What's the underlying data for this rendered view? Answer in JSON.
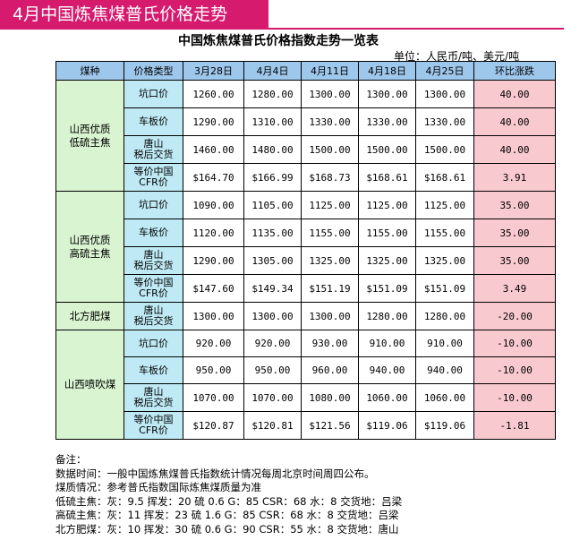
{
  "banner": {
    "title": "4月中国炼焦煤普氏价格走势"
  },
  "doc": {
    "title": "中国炼焦煤普氏价格指数走势一览表",
    "unit": "单位：人民币/吨、美元/吨"
  },
  "table": {
    "headers": [
      "煤种",
      "价格类型",
      "3月28日",
      "4月4日",
      "4月11日",
      "4月18日",
      "4月25日",
      "环比涨跌"
    ],
    "groups": [
      {
        "name": "山西优质\n低硫主焦",
        "rows": [
          {
            "type": "坑口价",
            "values": [
              "1260.00",
              "1280.00",
              "1300.00",
              "1300.00",
              "1300.00"
            ],
            "change": "40.00"
          },
          {
            "type": "车板价",
            "values": [
              "1290.00",
              "1310.00",
              "1330.00",
              "1330.00",
              "1330.00"
            ],
            "change": "40.00"
          },
          {
            "type": "唐山\n税后交货",
            "values": [
              "1460.00",
              "1480.00",
              "1500.00",
              "1500.00",
              "1500.00"
            ],
            "change": "40.00"
          },
          {
            "type": "等价中国\nCFR价",
            "values": [
              "$164.70",
              "$166.99",
              "$168.73",
              "$168.61",
              "$168.61"
            ],
            "change": "3.91"
          }
        ]
      },
      {
        "name": "山西优质\n高硫主焦",
        "rows": [
          {
            "type": "坑口价",
            "values": [
              "1090.00",
              "1105.00",
              "1125.00",
              "1125.00",
              "1125.00"
            ],
            "change": "35.00"
          },
          {
            "type": "车板价",
            "values": [
              "1120.00",
              "1135.00",
              "1155.00",
              "1155.00",
              "1155.00"
            ],
            "change": "35.00"
          },
          {
            "type": "唐山\n税后交货",
            "values": [
              "1290.00",
              "1305.00",
              "1325.00",
              "1325.00",
              "1325.00"
            ],
            "change": "35.00"
          },
          {
            "type": "等价中国\nCFR价",
            "values": [
              "$147.60",
              "$149.34",
              "$151.19",
              "$151.09",
              "$151.09"
            ],
            "change": "3.49"
          }
        ]
      },
      {
        "name": "北方肥煤",
        "rows": [
          {
            "type": "唐山\n税后交货",
            "values": [
              "1300.00",
              "1300.00",
              "1300.00",
              "1280.00",
              "1280.00"
            ],
            "change": "-20.00"
          }
        ]
      },
      {
        "name": "山西喷吹煤",
        "rows": [
          {
            "type": "坑口价",
            "values": [
              "920.00",
              "920.00",
              "930.00",
              "910.00",
              "910.00"
            ],
            "change": "-10.00"
          },
          {
            "type": "车板价",
            "values": [
              "950.00",
              "950.00",
              "960.00",
              "940.00",
              "940.00"
            ],
            "change": "-10.00"
          },
          {
            "type": "唐山\n税后交货",
            "values": [
              "1070.00",
              "1070.00",
              "1080.00",
              "1060.00",
              "1060.00"
            ],
            "change": "-10.00"
          },
          {
            "type": "等价中国\nCFR价",
            "values": [
              "$120.87",
              "$120.81",
              "$121.56",
              "$119.06",
              "$119.06"
            ],
            "change": "-1.81"
          }
        ]
      }
    ]
  },
  "notes": [
    "备注：",
    "数据时间：一般中国炼焦煤普氏指数统计情况每周北京时间周四公布。",
    "煤质情况：参考普氏指数国际炼焦煤质量为准",
    "低硫主焦：灰：9.5 挥发：20 硫 0.6 G：85 CSR：68 水：8 交货地：吕梁",
    "高硫主焦：灰：11 挥发：23 硫 1.6 G：85 CSR：68 水：8 交货地：吕梁",
    "北方肥煤：灰：10 挥发：30 硫 0.6 G：90 CSR：55 水：8 交货地：唐山"
  ]
}
